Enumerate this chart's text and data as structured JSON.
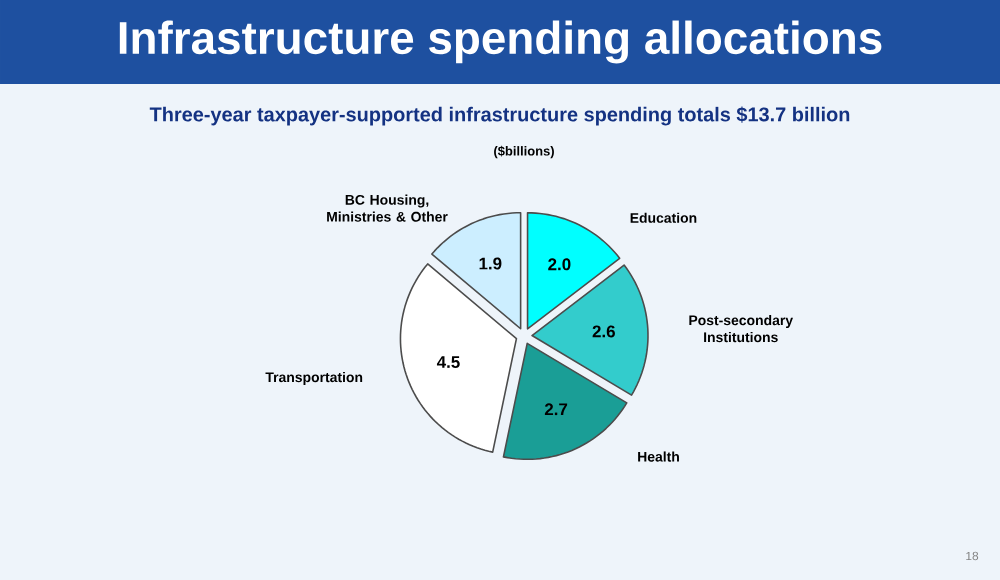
{
  "chart_data": {
    "type": "pie",
    "title": "Infrastructure spending allocations",
    "subtitle": "Three-year taxpayer-supported infrastructure spending totals $13.7 billion",
    "categories": [
      "Education",
      "Post-secondary Institutions",
      "Health",
      "Transportation",
      "BC Housing, Ministries & Other"
    ],
    "values": [
      2.0,
      2.6,
      2.7,
      4.5,
      1.9
    ],
    "colors": [
      "#00ffff",
      "#33cccc",
      "#1a9e96",
      "#ffffff",
      "#cceeff"
    ],
    "value_labels": [
      "2.0",
      "2.6",
      "2.7",
      "4.5",
      "1.9"
    ],
    "annotations": [
      "($billions)",
      "18"
    ]
  }
}
